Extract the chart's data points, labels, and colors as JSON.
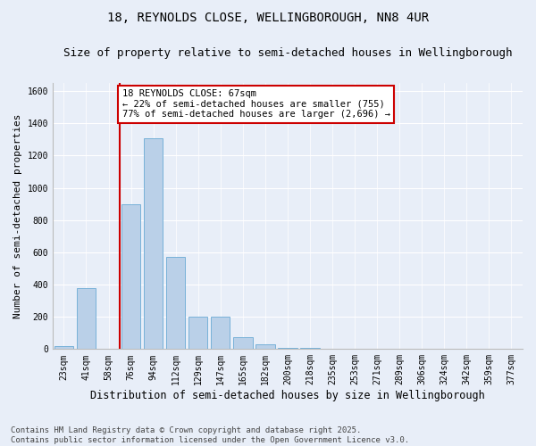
{
  "title": "18, REYNOLDS CLOSE, WELLINGBOROUGH, NN8 4UR",
  "subtitle": "Size of property relative to semi-detached houses in Wellingborough",
  "xlabel": "Distribution of semi-detached houses by size in Wellingborough",
  "ylabel": "Number of semi-detached properties",
  "categories": [
    "23sqm",
    "41sqm",
    "58sqm",
    "76sqm",
    "94sqm",
    "112sqm",
    "129sqm",
    "147sqm",
    "165sqm",
    "182sqm",
    "200sqm",
    "218sqm",
    "235sqm",
    "253sqm",
    "271sqm",
    "289sqm",
    "306sqm",
    "324sqm",
    "342sqm",
    "359sqm",
    "377sqm"
  ],
  "values": [
    18,
    380,
    0,
    900,
    1310,
    570,
    200,
    200,
    75,
    28,
    10,
    10,
    0,
    0,
    0,
    0,
    0,
    0,
    0,
    0,
    0
  ],
  "bar_color": "#bad0e8",
  "bar_edge_color": "#6aaad4",
  "property_line_color": "#cc0000",
  "annotation_text": "18 REYNOLDS CLOSE: 67sqm\n← 22% of semi-detached houses are smaller (755)\n77% of semi-detached houses are larger (2,696) →",
  "annotation_box_facecolor": "#ffffff",
  "annotation_box_edgecolor": "#cc0000",
  "ylim": [
    0,
    1650
  ],
  "yticks": [
    0,
    200,
    400,
    600,
    800,
    1000,
    1200,
    1400,
    1600
  ],
  "bg_color": "#e8eef8",
  "plot_bg_color": "#e8eef8",
  "footer": "Contains HM Land Registry data © Crown copyright and database right 2025.\nContains public sector information licensed under the Open Government Licence v3.0.",
  "title_fontsize": 10,
  "subtitle_fontsize": 9,
  "xlabel_fontsize": 8.5,
  "ylabel_fontsize": 8,
  "footer_fontsize": 6.5,
  "tick_fontsize": 7,
  "annot_fontsize": 7.5
}
